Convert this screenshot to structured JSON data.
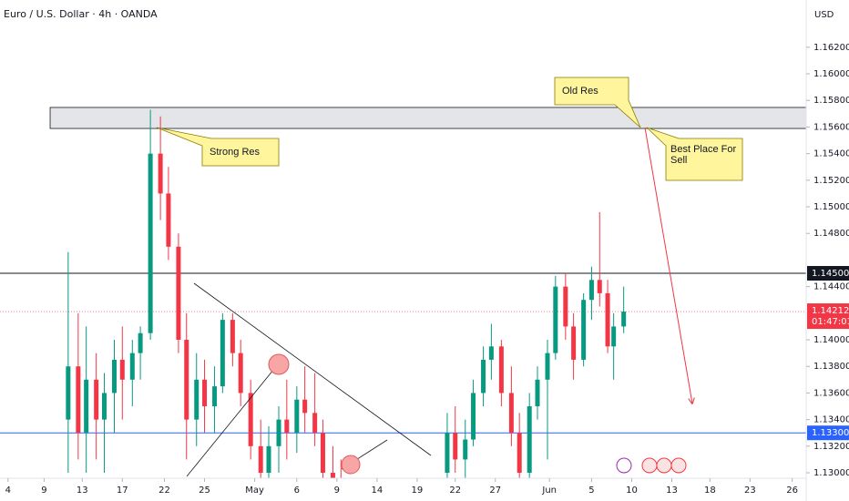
{
  "header": {
    "title": "Euro / U.S. Dollar · 4h · OANDA",
    "currency": "USD"
  },
  "chart_data": {
    "type": "candlestick",
    "up_color": "#089981",
    "down_color": "#f23645",
    "xlim": [
      0,
      402
    ],
    "ylim": [
      1.12959,
      1.16555
    ],
    "yticks": [
      {
        "value": 1.13,
        "label": "1.13000"
      },
      {
        "value": 1.132,
        "label": "1.13200"
      },
      {
        "value": 1.134,
        "label": "1.13400"
      },
      {
        "value": 1.136,
        "label": "1.13600"
      },
      {
        "value": 1.138,
        "label": "1.13800"
      },
      {
        "value": 1.14,
        "label": "1.14000"
      },
      {
        "value": 1.144,
        "label": "1.14400"
      },
      {
        "value": 1.148,
        "label": "1.14800"
      },
      {
        "value": 1.15,
        "label": "1.15000"
      },
      {
        "value": 1.152,
        "label": "1.15200"
      },
      {
        "value": 1.154,
        "label": "1.15400"
      },
      {
        "value": 1.156,
        "label": "1.15600"
      },
      {
        "value": 1.158,
        "label": "1.15800"
      },
      {
        "value": 1.16,
        "label": "1.16000"
      },
      {
        "value": 1.162,
        "label": "1.16200"
      }
    ],
    "xticks": [
      {
        "value": 4,
        "label": "4"
      },
      {
        "value": 22,
        "label": "9"
      },
      {
        "value": 41,
        "label": "13"
      },
      {
        "value": 61,
        "label": "17"
      },
      {
        "value": 82,
        "label": "22"
      },
      {
        "value": 102,
        "label": "25"
      },
      {
        "value": 127,
        "label": "May"
      },
      {
        "value": 148,
        "label": "6"
      },
      {
        "value": 168,
        "label": "9"
      },
      {
        "value": 188,
        "label": "14"
      },
      {
        "value": 208,
        "label": "19"
      },
      {
        "value": 227,
        "label": "22"
      },
      {
        "value": 247,
        "label": "27"
      },
      {
        "value": 274,
        "label": "Jun"
      },
      {
        "value": 295,
        "label": "5"
      },
      {
        "value": 315,
        "label": "10"
      },
      {
        "value": 335,
        "label": "13"
      },
      {
        "value": 354,
        "label": "18"
      },
      {
        "value": 374,
        "label": "23"
      },
      {
        "value": 395,
        "label": "26"
      }
    ],
    "x": [
      34,
      39,
      43,
      48,
      52,
      57,
      61,
      66,
      70,
      75,
      80,
      84,
      89,
      93,
      98,
      102,
      107,
      111,
      116,
      120,
      125,
      130,
      134,
      139,
      143,
      148,
      152,
      157,
      161,
      166,
      170,
      223,
      227,
      232,
      236,
      241,
      245,
      250,
      255,
      259,
      264,
      268,
      273,
      277,
      282,
      286,
      291,
      295,
      299,
      303,
      306,
      311
    ],
    "open": [
      1.134,
      1.138,
      1.133,
      1.137,
      1.134,
      1.136,
      1.1385,
      1.137,
      1.139,
      1.1405,
      1.154,
      1.151,
      1.147,
      1.14,
      1.134,
      1.137,
      1.135,
      1.1365,
      1.1415,
      1.139,
      1.136,
      1.132,
      1.13,
      1.132,
      1.134,
      1.133,
      1.1355,
      1.1345,
      1.133,
      1.13,
      1.1295,
      1.13,
      1.133,
      1.131,
      1.1325,
      1.136,
      1.1385,
      1.1395,
      1.136,
      1.133,
      1.13,
      1.135,
      1.137,
      1.139,
      1.144,
      1.141,
      1.1385,
      1.143,
      1.1445,
      1.1435,
      1.1395,
      1.141
    ],
    "high": [
      1.1466,
      1.142,
      1.141,
      1.139,
      1.1375,
      1.14,
      1.141,
      1.14,
      1.141,
      1.1573,
      1.1568,
      1.153,
      1.148,
      1.142,
      1.139,
      1.1385,
      1.138,
      1.142,
      1.142,
      1.14,
      1.137,
      1.134,
      1.1335,
      1.135,
      1.137,
      1.1365,
      1.138,
      1.1375,
      1.134,
      1.132,
      1.131,
      1.1345,
      1.135,
      1.134,
      1.137,
      1.1395,
      1.1412,
      1.14,
      1.138,
      1.1345,
      1.136,
      1.138,
      1.14,
      1.1448,
      1.145,
      1.142,
      1.1435,
      1.1455,
      1.1496,
      1.1445,
      1.142,
      1.144
    ],
    "low": [
      1.13,
      1.131,
      1.13,
      1.131,
      1.13,
      1.133,
      1.134,
      1.135,
      1.137,
      1.14,
      1.149,
      1.146,
      1.139,
      1.131,
      1.132,
      1.133,
      1.133,
      1.136,
      1.138,
      1.135,
      1.131,
      1.129,
      1.129,
      1.13,
      1.131,
      1.1315,
      1.133,
      1.132,
      1.129,
      1.1285,
      1.128,
      1.129,
      1.13,
      1.129,
      1.132,
      1.135,
      1.137,
      1.135,
      1.132,
      1.129,
      1.1295,
      1.134,
      1.131,
      1.1385,
      1.14,
      1.137,
      1.138,
      1.1415,
      1.1425,
      1.139,
      1.137,
      1.1405
    ],
    "close": [
      1.138,
      1.133,
      1.137,
      1.134,
      1.136,
      1.1385,
      1.137,
      1.139,
      1.1405,
      1.154,
      1.151,
      1.147,
      1.14,
      1.134,
      1.137,
      1.135,
      1.1365,
      1.1415,
      1.139,
      1.136,
      1.132,
      1.13,
      1.132,
      1.134,
      1.133,
      1.1355,
      1.1345,
      1.133,
      1.13,
      1.1295,
      1.129,
      1.133,
      1.131,
      1.1325,
      1.136,
      1.1385,
      1.1395,
      1.136,
      1.133,
      1.13,
      1.135,
      1.137,
      1.139,
      1.144,
      1.141,
      1.1385,
      1.143,
      1.1445,
      1.1435,
      1.1395,
      1.141,
      1.14212
    ],
    "zone": {
      "low": 1.15589,
      "high": 1.15747,
      "x_start": 25,
      "color": "#e4e5e9"
    },
    "levels": [
      {
        "value": 1.145,
        "label": "1.14500",
        "color": "#131722"
      },
      {
        "value": 1.133,
        "label": "1.13300",
        "color": "#2962ff"
      }
    ],
    "last_price": {
      "value": 1.14212,
      "label": "1.14212",
      "countdown": "01:47:01",
      "color": "#f23645"
    },
    "annotations": {
      "strong_res": "Strong Res",
      "old_res": "Old Res",
      "best_place": "Best Place For Sell"
    }
  }
}
